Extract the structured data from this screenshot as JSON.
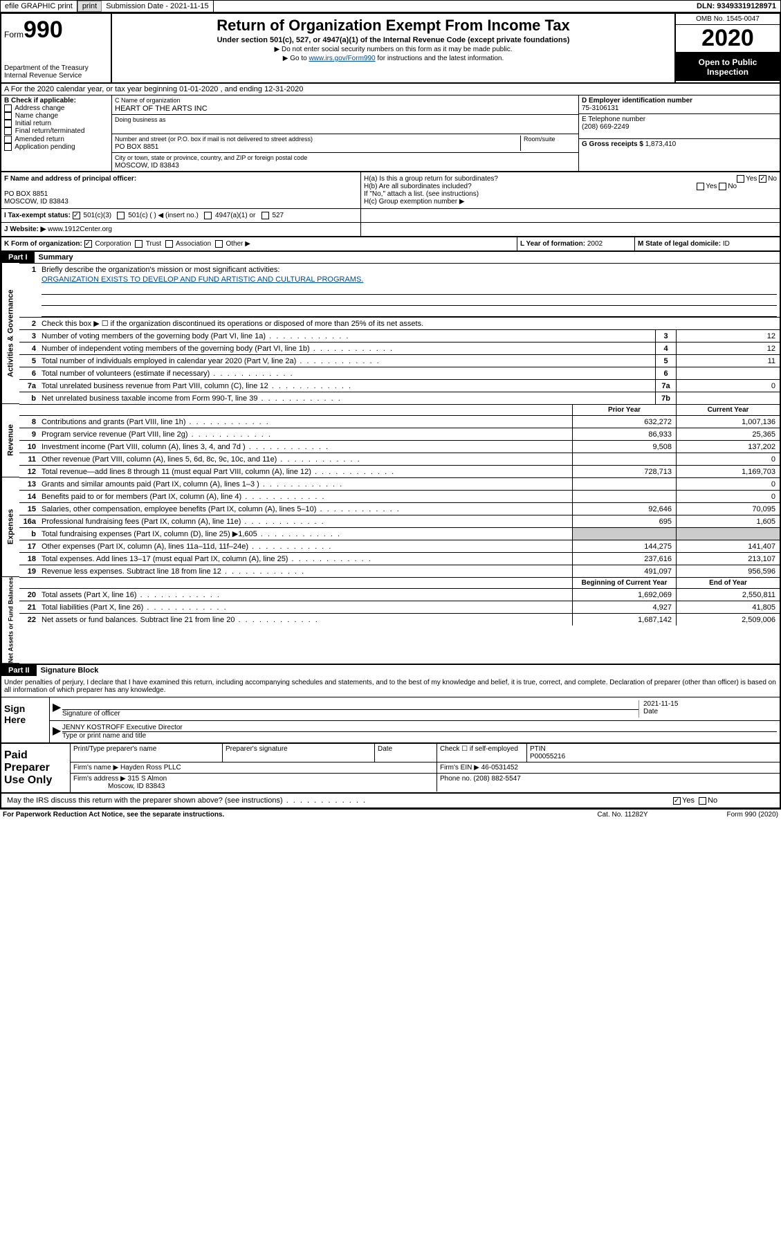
{
  "top": {
    "efile": "efile GRAPHIC print",
    "sub_label": "Submission Date - 2021-11-15",
    "dln": "DLN: 93493319128971"
  },
  "header": {
    "form_label": "Form",
    "form_no": "990",
    "dept": "Department of the Treasury\nInternal Revenue Service",
    "title": "Return of Organization Exempt From Income Tax",
    "subtitle": "Under section 501(c), 527, or 4947(a)(1) of the Internal Revenue Code (except private foundations)",
    "note1": "▶ Do not enter social security numbers on this form as it may be made public.",
    "note2_pre": "▶ Go to ",
    "note2_link": "www.irs.gov/Form990",
    "note2_post": " for instructions and the latest information.",
    "omb": "OMB No. 1545-0047",
    "year": "2020",
    "open": "Open to Public Inspection"
  },
  "row_a": "A For the 2020 calendar year, or tax year beginning 01-01-2020     , and ending 12-31-2020",
  "col_b": {
    "title": "B Check if applicable:",
    "items": [
      "Address change",
      "Name change",
      "Initial return",
      "Final return/terminated",
      "Amended return",
      "Application pending"
    ]
  },
  "col_c": {
    "name_lbl": "C Name of organization",
    "name": "HEART OF THE ARTS INC",
    "dba_lbl": "Doing business as",
    "addr_lbl": "Number and street (or P.O. box if mail is not delivered to street address)",
    "room_lbl": "Room/suite",
    "addr": "PO BOX 8851",
    "city_lbl": "City or town, state or province, country, and ZIP or foreign postal code",
    "city": "MOSCOW, ID  83843"
  },
  "col_d": {
    "ein_lbl": "D Employer identification number",
    "ein": "75-3106131",
    "tel_lbl": "E Telephone number",
    "tel": "(208) 669-2249",
    "gross_lbl": "G Gross receipts $",
    "gross": "1,873,410"
  },
  "f": {
    "lbl": "F Name and address of principal officer:",
    "line1": "PO BOX 8851",
    "line2": "MOSCOW, ID  83843"
  },
  "h": {
    "a": "H(a)  Is this a group return for subordinates?",
    "b": "H(b)  Are all subordinates included?",
    "note": "If \"No,\" attach a list. (see instructions)",
    "c": "H(c)  Group exemption number ▶"
  },
  "i": {
    "lbl": "I  Tax-exempt status:",
    "opts": [
      "501(c)(3)",
      "501(c) (  ) ◀ (insert no.)",
      "4947(a)(1) or",
      "527"
    ]
  },
  "j": {
    "lbl": "J  Website: ▶",
    "val": "www.1912Center.org"
  },
  "k": {
    "lbl": "K Form of organization:",
    "opts": [
      "Corporation",
      "Trust",
      "Association",
      "Other ▶"
    ],
    "l_lbl": "L Year of formation:",
    "l_val": "2002",
    "m_lbl": "M State of legal domicile:",
    "m_val": "ID"
  },
  "part1": {
    "hdr": "Part I",
    "title": "Summary"
  },
  "gov": {
    "l1": "Briefly describe the organization's mission or most significant activities:",
    "mission": "ORGANIZATION EXISTS TO DEVELOP AND FUND ARTISTIC AND CULTURAL PROGRAMS.",
    "l2": "Check this box ▶ ☐  if the organization discontinued its operations or disposed of more than 25% of its net assets.",
    "rows": [
      {
        "n": "3",
        "t": "Number of voting members of the governing body (Part VI, line 1a)",
        "b": "3",
        "v": "12"
      },
      {
        "n": "4",
        "t": "Number of independent voting members of the governing body (Part VI, line 1b)",
        "b": "4",
        "v": "12"
      },
      {
        "n": "5",
        "t": "Total number of individuals employed in calendar year 2020 (Part V, line 2a)",
        "b": "5",
        "v": "11"
      },
      {
        "n": "6",
        "t": "Total number of volunteers (estimate if necessary)",
        "b": "6",
        "v": ""
      },
      {
        "n": "7a",
        "t": "Total unrelated business revenue from Part VIII, column (C), line 12",
        "b": "7a",
        "v": "0"
      },
      {
        "n": "b",
        "t": "Net unrelated business taxable income from Form 990-T, line 39",
        "b": "7b",
        "v": ""
      }
    ]
  },
  "rev_hdr": {
    "prior": "Prior Year",
    "curr": "Current Year"
  },
  "rev": [
    {
      "n": "8",
      "t": "Contributions and grants (Part VIII, line 1h)",
      "p": "632,272",
      "c": "1,007,136"
    },
    {
      "n": "9",
      "t": "Program service revenue (Part VIII, line 2g)",
      "p": "86,933",
      "c": "25,365"
    },
    {
      "n": "10",
      "t": "Investment income (Part VIII, column (A), lines 3, 4, and 7d )",
      "p": "9,508",
      "c": "137,202"
    },
    {
      "n": "11",
      "t": "Other revenue (Part VIII, column (A), lines 5, 6d, 8c, 9c, 10c, and 11e)",
      "p": "",
      "c": "0"
    },
    {
      "n": "12",
      "t": "Total revenue—add lines 8 through 11 (must equal Part VIII, column (A), line 12)",
      "p": "728,713",
      "c": "1,169,703"
    }
  ],
  "exp": [
    {
      "n": "13",
      "t": "Grants and similar amounts paid (Part IX, column (A), lines 1–3 )",
      "p": "",
      "c": "0"
    },
    {
      "n": "14",
      "t": "Benefits paid to or for members (Part IX, column (A), line 4)",
      "p": "",
      "c": "0"
    },
    {
      "n": "15",
      "t": "Salaries, other compensation, employee benefits (Part IX, column (A), lines 5–10)",
      "p": "92,646",
      "c": "70,095"
    },
    {
      "n": "16a",
      "t": "Professional fundraising fees (Part IX, column (A), line 11e)",
      "p": "695",
      "c": "1,605"
    },
    {
      "n": "b",
      "t": "Total fundraising expenses (Part IX, column (D), line 25) ▶1,605",
      "p": "grey",
      "c": "grey"
    },
    {
      "n": "17",
      "t": "Other expenses (Part IX, column (A), lines 11a–11d, 11f–24e)",
      "p": "144,275",
      "c": "141,407"
    },
    {
      "n": "18",
      "t": "Total expenses. Add lines 13–17 (must equal Part IX, column (A), line 25)",
      "p": "237,616",
      "c": "213,107"
    },
    {
      "n": "19",
      "t": "Revenue less expenses. Subtract line 18 from line 12",
      "p": "491,097",
      "c": "956,596"
    }
  ],
  "na_hdr": {
    "beg": "Beginning of Current Year",
    "end": "End of Year"
  },
  "na": [
    {
      "n": "20",
      "t": "Total assets (Part X, line 16)",
      "p": "1,692,069",
      "c": "2,550,811"
    },
    {
      "n": "21",
      "t": "Total liabilities (Part X, line 26)",
      "p": "4,927",
      "c": "41,805"
    },
    {
      "n": "22",
      "t": "Net assets or fund balances. Subtract line 21 from line 20",
      "p": "1,687,142",
      "c": "2,509,006"
    }
  ],
  "part2": {
    "hdr": "Part II",
    "title": "Signature Block"
  },
  "sig": {
    "intro": "Under penalties of perjury, I declare that I have examined this return, including accompanying schedules and statements, and to the best of my knowledge and belief, it is true, correct, and complete. Declaration of preparer (other than officer) is based on all information of which preparer has any knowledge.",
    "here": "Sign Here",
    "off_lbl": "Signature of officer",
    "date_lbl": "Date",
    "date": "2021-11-15",
    "name": "JENNY KOSTROFF  Executive Director",
    "name_lbl": "Type or print name and title"
  },
  "prep": {
    "lbl": "Paid Preparer Use Only",
    "h1": "Print/Type preparer's name",
    "h2": "Preparer's signature",
    "h3": "Date",
    "h4": "Check ☐ if self-employed",
    "h5": "PTIN",
    "ptin": "P00055216",
    "firm_lbl": "Firm's name   ▶",
    "firm": "Hayden Ross PLLC",
    "ein_lbl": "Firm's EIN ▶",
    "ein": "46-0531452",
    "addr_lbl": "Firm's address ▶",
    "addr1": "315 S Almon",
    "addr2": "Moscow, ID  83843",
    "phone_lbl": "Phone no.",
    "phone": "(208) 882-5547"
  },
  "discuss": "May the IRS discuss this return with the preparer shown above? (see instructions)",
  "foot": {
    "pra": "For Paperwork Reduction Act Notice, see the separate instructions.",
    "cat": "Cat. No. 11282Y",
    "form": "Form 990 (2020)"
  }
}
